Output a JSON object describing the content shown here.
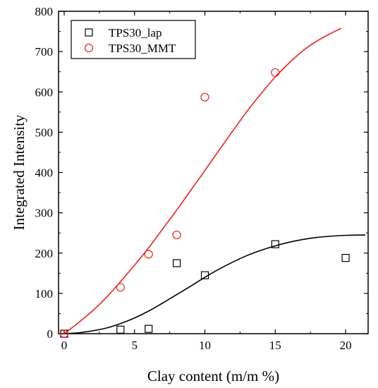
{
  "chart_data": {
    "type": "scatter",
    "title": "",
    "xlabel": "Clay content (m/m %)",
    "ylabel": "Integrated Intensity",
    "xlim": [
      -0.4,
      21.6
    ],
    "ylim": [
      0,
      800
    ],
    "x_ticks": [
      0,
      5,
      10,
      15,
      20
    ],
    "y_ticks": [
      0,
      100,
      200,
      300,
      400,
      500,
      600,
      700,
      800
    ],
    "grid": false,
    "legend_position": "top-left",
    "series": [
      {
        "name": "TPS30_lap",
        "marker": "square",
        "color": "#000000",
        "points": [
          {
            "x": 0,
            "y": 0
          },
          {
            "x": 4,
            "y": 10
          },
          {
            "x": 6,
            "y": 12
          },
          {
            "x": 8,
            "y": 175
          },
          {
            "x": 10,
            "y": 145
          },
          {
            "x": 15,
            "y": 222
          },
          {
            "x": 20,
            "y": 188
          }
        ],
        "fit_curve": [
          {
            "x": 0,
            "y": 0
          },
          {
            "x": 1,
            "y": 2
          },
          {
            "x": 2,
            "y": 7
          },
          {
            "x": 3,
            "y": 14
          },
          {
            "x": 4,
            "y": 25
          },
          {
            "x": 5,
            "y": 39
          },
          {
            "x": 6,
            "y": 56
          },
          {
            "x": 7,
            "y": 76
          },
          {
            "x": 8,
            "y": 97
          },
          {
            "x": 9,
            "y": 118
          },
          {
            "x": 10,
            "y": 140
          },
          {
            "x": 11,
            "y": 160
          },
          {
            "x": 12,
            "y": 178
          },
          {
            "x": 13,
            "y": 194
          },
          {
            "x": 14,
            "y": 207
          },
          {
            "x": 15,
            "y": 218
          },
          {
            "x": 16,
            "y": 227
          },
          {
            "x": 17,
            "y": 234
          },
          {
            "x": 18,
            "y": 239
          },
          {
            "x": 19,
            "y": 242
          },
          {
            "x": 20,
            "y": 244
          },
          {
            "x": 21.4,
            "y": 245
          }
        ]
      },
      {
        "name": "TPS30_MMT",
        "marker": "circle",
        "color": "#e8231d",
        "points": [
          {
            "x": 0,
            "y": 0
          },
          {
            "x": 4,
            "y": 115
          },
          {
            "x": 6,
            "y": 197
          },
          {
            "x": 8,
            "y": 245
          },
          {
            "x": 10,
            "y": 587
          },
          {
            "x": 15,
            "y": 648
          }
        ],
        "fit_curve": [
          {
            "x": 0,
            "y": 0
          },
          {
            "x": 1,
            "y": 27
          },
          {
            "x": 2,
            "y": 56
          },
          {
            "x": 3,
            "y": 90
          },
          {
            "x": 4,
            "y": 129
          },
          {
            "x": 5,
            "y": 170
          },
          {
            "x": 6,
            "y": 213
          },
          {
            "x": 7,
            "y": 260
          },
          {
            "x": 8,
            "y": 307
          },
          {
            "x": 9,
            "y": 356
          },
          {
            "x": 10,
            "y": 405
          },
          {
            "x": 11,
            "y": 455
          },
          {
            "x": 12,
            "y": 504
          },
          {
            "x": 13,
            "y": 552
          },
          {
            "x": 14,
            "y": 596
          },
          {
            "x": 15,
            "y": 637
          },
          {
            "x": 16,
            "y": 672
          },
          {
            "x": 17,
            "y": 703
          },
          {
            "x": 18,
            "y": 727
          },
          {
            "x": 19,
            "y": 746
          },
          {
            "x": 19.7,
            "y": 758
          }
        ]
      }
    ]
  }
}
